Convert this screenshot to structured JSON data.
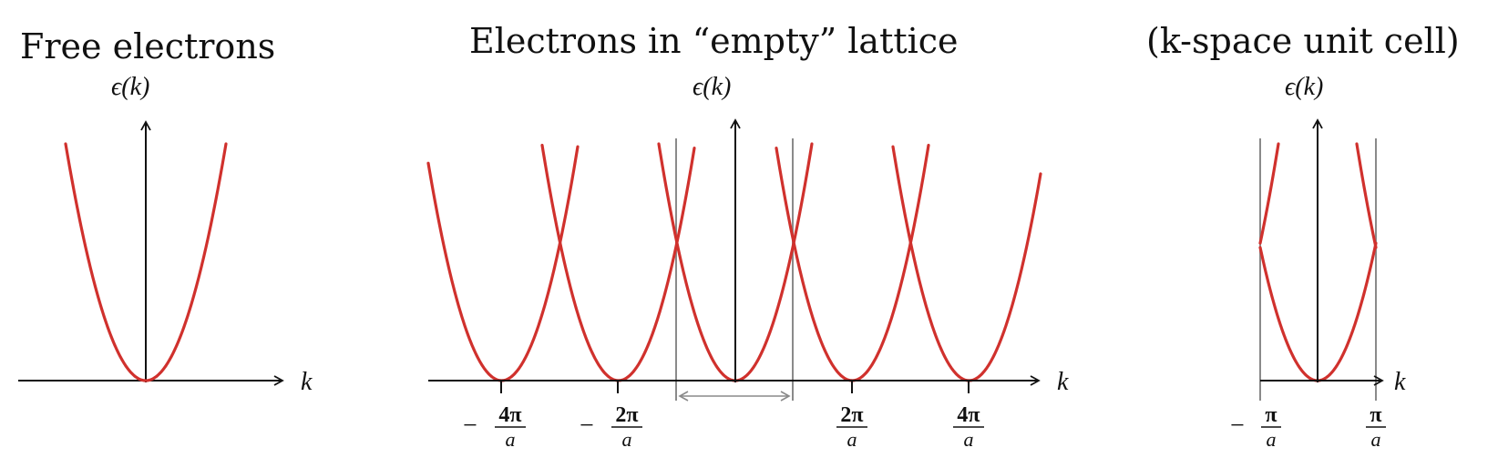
{
  "panels": {
    "free": {
      "title": "Free electrons",
      "y_label": "ϵ(k)",
      "x_label": "k"
    },
    "empty": {
      "title": "Electrons in “empty” lattice",
      "y_label": "ϵ(k)",
      "x_label": "k",
      "ticks": [
        {
          "minus": "−",
          "num": "4π",
          "den": "a"
        },
        {
          "minus": "−",
          "num": "2π",
          "den": "a"
        },
        {
          "minus": "",
          "num": "2π",
          "den": "a"
        },
        {
          "minus": "",
          "num": "4π",
          "den": "a"
        }
      ]
    },
    "cell": {
      "title": "(k-space unit cell)",
      "y_label": "ϵ(k)",
      "x_label": "k",
      "ticks": [
        {
          "minus": "−",
          "num": "π",
          "den": "a"
        },
        {
          "minus": "",
          "num": "π",
          "den": "a"
        }
      ]
    }
  },
  "colors": {
    "band": "#d0312d",
    "axis": "#111111",
    "cell_line": "#8a8a8a"
  },
  "model": {
    "dispersion": "parabolic",
    "lattice_period_units": "2π/a",
    "free_parabola_centers": [
      0
    ],
    "empty_lattice_parabola_centers": [
      -4,
      -2,
      0,
      2,
      4
    ],
    "unit_cell_range": [
      -1,
      1
    ]
  }
}
